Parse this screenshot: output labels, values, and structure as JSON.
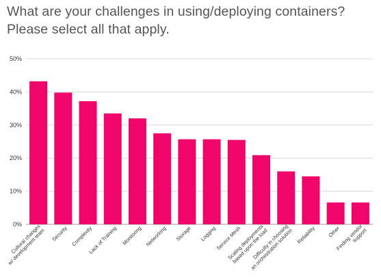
{
  "title_line1": "What are your challenges in using/deploying containers?",
  "title_line2": "Please select all that apply.",
  "chart_data": {
    "type": "bar",
    "title": "What are your challenges in using/deploying containers? Please select all that apply.",
    "xlabel": "",
    "ylabel": "",
    "ylim": [
      0,
      50
    ],
    "yticks": [
      "0%",
      "10%",
      "20%",
      "30%",
      "40%",
      "50%"
    ],
    "grid": true,
    "bar_color": "#f0066b",
    "categories": [
      [
        "Cultural changes",
        "w/ development team"
      ],
      [
        "Security"
      ],
      [
        "Complexity"
      ],
      [
        "Lack of Training"
      ],
      [
        "Monitoring"
      ],
      [
        "Networking"
      ],
      [
        "Storage"
      ],
      [
        "Logging"
      ],
      [
        "Service Mesh"
      ],
      [
        "Scaling deployments",
        "based upon the load"
      ],
      [
        "Difficulty in choosing",
        "an orchestration solution"
      ],
      [
        "Reliability"
      ],
      [
        "Other"
      ],
      [
        "Finding vendor",
        "support"
      ]
    ],
    "values": [
      43.2,
      39.8,
      37.2,
      33.5,
      32.0,
      27.5,
      25.7,
      25.7,
      25.5,
      20.9,
      16.0,
      14.5,
      6.6,
      6.6
    ]
  }
}
